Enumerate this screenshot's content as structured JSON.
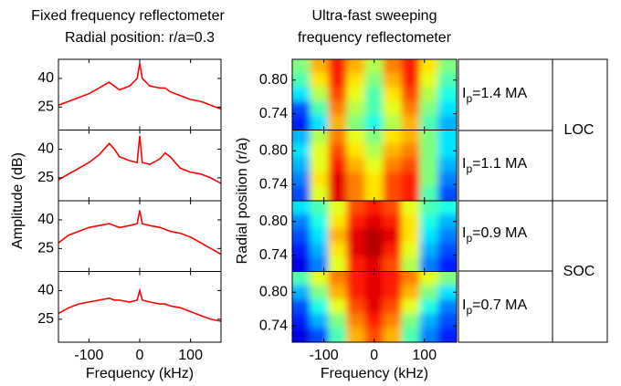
{
  "chart_data": [
    {
      "type": "line",
      "title": [
        "Fixed frequency reflectometer",
        "Radial position: r/a=0.3"
      ],
      "xlabel": "Frequency (kHz)",
      "ylabel": "Amplitude (dB)",
      "xlim": [
        -160,
        160
      ],
      "xticks": [
        -100,
        0,
        100
      ],
      "ylim": [
        13,
        50
      ],
      "yticks": [
        25,
        40
      ],
      "color": "#ff0000",
      "x": [
        -160,
        -140,
        -120,
        -100,
        -80,
        -60,
        -50,
        -40,
        -20,
        -5,
        0,
        5,
        20,
        40,
        50,
        60,
        80,
        100,
        120,
        140,
        160
      ],
      "series": [
        {
          "values": [
            26,
            28,
            30,
            32,
            35,
            38,
            36,
            34,
            36,
            40,
            48,
            40,
            36,
            35,
            35,
            33,
            31,
            29,
            28,
            26,
            24
          ]
        },
        {
          "values": [
            24,
            27,
            30,
            33,
            37,
            43,
            40,
            36,
            34,
            33,
            47,
            33,
            32,
            35,
            38,
            36,
            30,
            28,
            27,
            25,
            22
          ]
        },
        {
          "values": [
            28,
            32,
            34,
            36,
            37,
            38,
            37,
            36,
            37,
            38,
            45,
            38,
            37,
            36,
            35,
            34,
            33,
            31,
            28,
            25,
            22
          ]
        },
        {
          "values": [
            28,
            31,
            33,
            34,
            35,
            36,
            35,
            35,
            34,
            35,
            40,
            35,
            34,
            33,
            33,
            32,
            31,
            29,
            27,
            25,
            24
          ]
        }
      ]
    },
    {
      "type": "heatmap",
      "title": [
        "Ultra-fast sweeping",
        "frequency reflectometer"
      ],
      "xlabel": "Frequency (kHz)",
      "ylabel": "Radial position (r/a)",
      "xlim": [
        -163,
        164
      ],
      "xticks": [
        -100,
        0,
        100
      ],
      "ylim": [
        0.711,
        0.837
      ],
      "yticks": [
        0.74,
        {
          "value": 0.8,
          "label": "0.80"
        }
      ],
      "colormap": "jet",
      "panels": [
        {
          "z": [
            [
              0.5,
              0.7,
              0.85,
              0.7,
              0.55,
              0.75,
              0.85,
              0.65,
              0.5
            ],
            [
              0.45,
              0.65,
              0.85,
              0.65,
              0.5,
              0.7,
              0.85,
              0.6,
              0.45
            ],
            [
              0.35,
              0.55,
              0.8,
              0.6,
              0.45,
              0.65,
              0.8,
              0.55,
              0.4
            ],
            [
              0.2,
              0.45,
              0.75,
              0.55,
              0.45,
              0.6,
              0.75,
              0.5,
              0.35
            ],
            [
              0.15,
              0.35,
              0.7,
              0.5,
              0.4,
              0.55,
              0.7,
              0.45,
              0.3
            ]
          ]
        },
        {
          "z": [
            [
              0.3,
              0.55,
              0.75,
              0.6,
              0.5,
              0.65,
              0.7,
              0.5,
              0.35
            ],
            [
              0.35,
              0.6,
              0.8,
              0.65,
              0.55,
              0.7,
              0.75,
              0.5,
              0.35
            ],
            [
              0.3,
              0.6,
              0.85,
              0.7,
              0.6,
              0.75,
              0.8,
              0.5,
              0.3
            ],
            [
              0.25,
              0.65,
              0.9,
              0.75,
              0.65,
              0.8,
              0.85,
              0.5,
              0.25
            ],
            [
              0.2,
              0.6,
              0.9,
              0.75,
              0.65,
              0.8,
              0.85,
              0.45,
              0.2
            ]
          ]
        },
        {
          "z": [
            [
              0.35,
              0.45,
              0.6,
              0.8,
              0.85,
              0.8,
              0.6,
              0.45,
              0.4
            ],
            [
              0.25,
              0.4,
              0.65,
              0.85,
              0.9,
              0.85,
              0.65,
              0.4,
              0.3
            ],
            [
              0.2,
              0.35,
              0.7,
              0.9,
              0.95,
              0.9,
              0.65,
              0.35,
              0.25
            ],
            [
              0.15,
              0.3,
              0.65,
              0.9,
              0.95,
              0.85,
              0.6,
              0.3,
              0.2
            ],
            [
              0.1,
              0.25,
              0.6,
              0.85,
              0.9,
              0.8,
              0.55,
              0.25,
              0.15
            ]
          ]
        },
        {
          "z": [
            [
              0.45,
              0.6,
              0.75,
              0.85,
              0.9,
              0.85,
              0.75,
              0.6,
              0.5
            ],
            [
              0.3,
              0.5,
              0.7,
              0.85,
              0.9,
              0.85,
              0.7,
              0.5,
              0.35
            ],
            [
              0.2,
              0.4,
              0.6,
              0.8,
              0.9,
              0.8,
              0.6,
              0.4,
              0.25
            ],
            [
              0.15,
              0.3,
              0.5,
              0.75,
              0.85,
              0.75,
              0.5,
              0.3,
              0.2
            ],
            [
              0.1,
              0.2,
              0.45,
              0.7,
              0.8,
              0.7,
              0.45,
              0.25,
              0.15
            ]
          ]
        }
      ]
    }
  ],
  "table": {
    "rows": [
      {
        "symbol": "I",
        "subscript": "p",
        "value": "=1.4 MA"
      },
      {
        "symbol": "I",
        "subscript": "p",
        "value": "=1.1 MA"
      },
      {
        "symbol": "I",
        "subscript": "p",
        "value": "=0.9 MA"
      },
      {
        "symbol": "I",
        "subscript": "p",
        "value": "=0.7 MA"
      }
    ],
    "regimes": [
      "LOC",
      "SOC"
    ]
  }
}
